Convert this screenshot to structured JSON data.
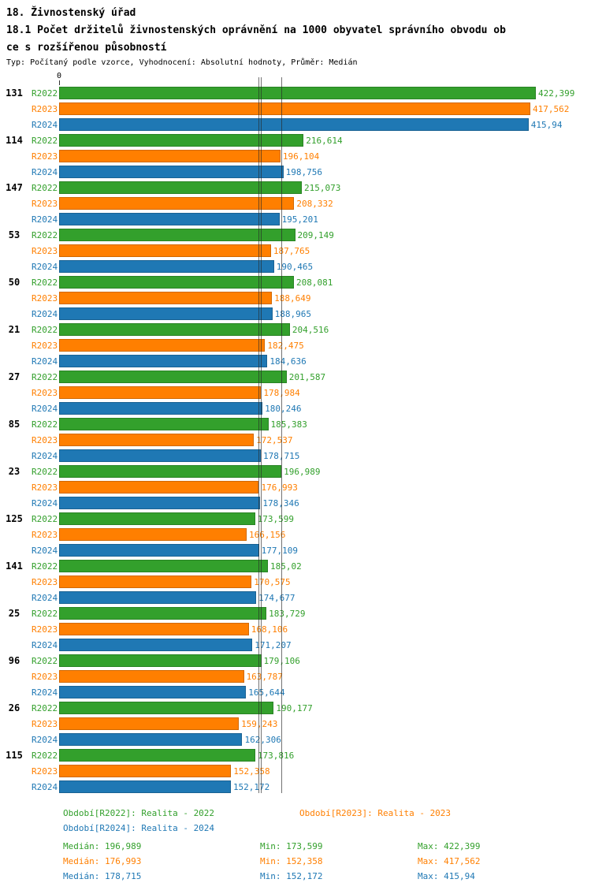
{
  "header": {
    "title": "18. Živnostenský úřad",
    "subtitle_line1": "18.1 Počet držitelů živnostenských oprávnění na 1000 obyvatel správního obvodu ob",
    "subtitle_line2": "ce s rozšířenou působností",
    "meta": "Typ: Počítaný podle vzorce, Vyhodnocení: Absolutní hodnoty, Průměr: Medián"
  },
  "chart_data": {
    "type": "bar",
    "orientation": "horizontal",
    "axis_origin_label": "0",
    "x_scale_max": 471.3,
    "grid": "median-reference-lines",
    "legend_position": "bottom",
    "series": [
      {
        "name": "R2022",
        "color": "#33a02c",
        "median": 196.989,
        "min": 173.599,
        "max": 422.399
      },
      {
        "name": "R2023",
        "color": "#ff7f00",
        "median": 176.993,
        "min": 152.358,
        "max": 417.562
      },
      {
        "name": "R2024",
        "color": "#1f78b4",
        "median": 178.715,
        "min": 152.172,
        "max": 415.94
      }
    ],
    "groups": [
      {
        "label": "131",
        "values": [
          422.399,
          417.562,
          415.94
        ],
        "display": [
          "422,399",
          "417,562",
          "415,94"
        ]
      },
      {
        "label": "114",
        "values": [
          216.614,
          196.104,
          198.756
        ],
        "display": [
          "216,614",
          "196,104",
          "198,756"
        ]
      },
      {
        "label": "147",
        "values": [
          215.073,
          208.332,
          195.201
        ],
        "display": [
          "215,073",
          "208,332",
          "195,201"
        ]
      },
      {
        "label": "53",
        "values": [
          209.149,
          187.765,
          190.465
        ],
        "display": [
          "209,149",
          "187,765",
          "190,465"
        ]
      },
      {
        "label": "50",
        "values": [
          208.081,
          188.649,
          188.965
        ],
        "display": [
          "208,081",
          "188,649",
          "188,965"
        ]
      },
      {
        "label": "21",
        "values": [
          204.516,
          182.475,
          184.636
        ],
        "display": [
          "204,516",
          "182,475",
          "184,636"
        ]
      },
      {
        "label": "27",
        "values": [
          201.587,
          178.984,
          180.246
        ],
        "display": [
          "201,587",
          "178,984",
          "180,246"
        ]
      },
      {
        "label": "85",
        "values": [
          185.383,
          172.537,
          178.715
        ],
        "display": [
          "185,383",
          "172,537",
          "178,715"
        ]
      },
      {
        "label": "23",
        "values": [
          196.989,
          176.993,
          178.346
        ],
        "display": [
          "196,989",
          "176,993",
          "178,346"
        ]
      },
      {
        "label": "125",
        "values": [
          173.599,
          166.156,
          177.109
        ],
        "display": [
          "173,599",
          "166,156",
          "177,109"
        ]
      },
      {
        "label": "141",
        "values": [
          185.02,
          170.575,
          174.677
        ],
        "display": [
          "185,02",
          "170,575",
          "174,677"
        ]
      },
      {
        "label": "25",
        "values": [
          183.729,
          168.106,
          171.207
        ],
        "display": [
          "183,729",
          "168,106",
          "171,207"
        ]
      },
      {
        "label": "96",
        "values": [
          179.106,
          163.787,
          165.644
        ],
        "display": [
          "179,106",
          "163,787",
          "165,644"
        ]
      },
      {
        "label": "26",
        "values": [
          190.177,
          159.243,
          162.306
        ],
        "display": [
          "190,177",
          "159,243",
          "162,306"
        ]
      },
      {
        "label": "115",
        "values": [
          173.816,
          152.358,
          152.172
        ],
        "display": [
          "173,816",
          "152,358",
          "152,172"
        ]
      }
    ]
  },
  "legend": {
    "items": [
      {
        "label": "Období[R2022]: Realita - 2022",
        "color": "#33a02c"
      },
      {
        "label": "Období[R2023]: Realita - 2023",
        "color": "#ff7f00"
      },
      {
        "label": "Období[R2024]: Realita - 2024",
        "color": "#1f78b4"
      }
    ]
  },
  "stats": {
    "rows": [
      {
        "color": "#33a02c",
        "median": "Medián: 196,989",
        "min": "Min: 173,599",
        "max": "Max: 422,399"
      },
      {
        "color": "#ff7f00",
        "median": "Medián: 176,993",
        "min": "Min: 152,358",
        "max": "Max: 417,562"
      },
      {
        "color": "#1f78b4",
        "median": "Medián: 178,715",
        "min": "Min: 152,172",
        "max": "Max: 415,94"
      }
    ]
  }
}
